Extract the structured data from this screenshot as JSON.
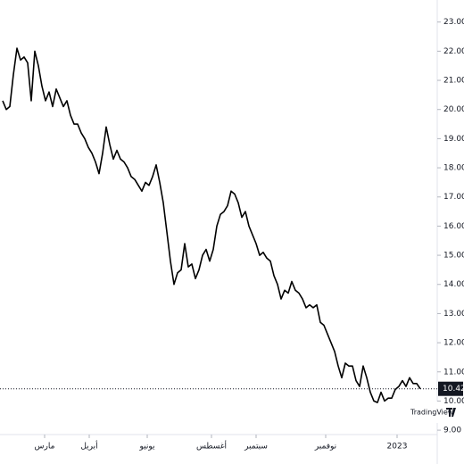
{
  "chart_data": {
    "type": "line",
    "color": "#000000",
    "values": [
      20.3,
      20.0,
      20.1,
      21.2,
      22.1,
      21.7,
      21.8,
      21.6,
      20.3,
      22.0,
      21.5,
      20.8,
      20.3,
      20.6,
      20.1,
      20.7,
      20.4,
      20.1,
      20.3,
      19.8,
      19.5,
      19.5,
      19.2,
      19.0,
      18.7,
      18.5,
      18.2,
      17.8,
      18.5,
      19.4,
      18.8,
      18.3,
      18.6,
      18.3,
      18.2,
      18.0,
      17.7,
      17.6,
      17.4,
      17.2,
      17.5,
      17.4,
      17.7,
      18.1,
      17.5,
      16.8,
      15.8,
      14.8,
      14.0,
      14.4,
      14.5,
      15.4,
      14.6,
      14.7,
      14.2,
      14.5,
      15.0,
      15.2,
      14.8,
      15.2,
      16.0,
      16.4,
      16.5,
      16.7,
      17.2,
      17.1,
      16.8,
      16.3,
      16.5,
      16.0,
      15.7,
      15.4,
      15.0,
      15.1,
      14.9,
      14.8,
      14.3,
      14.0,
      13.5,
      13.8,
      13.7,
      14.1,
      13.8,
      13.7,
      13.5,
      13.2,
      13.3,
      13.2,
      13.3,
      12.7,
      12.6,
      12.3,
      12.0,
      11.7,
      11.2,
      10.8,
      11.3,
      11.2,
      11.2,
      10.7,
      10.5,
      11.2,
      10.8,
      10.3,
      10.0,
      9.95,
      10.3,
      10.0,
      10.1,
      10.1,
      10.4,
      10.5,
      10.7,
      10.5,
      10.8,
      10.6,
      10.6,
      10.42
    ],
    "xlim": [
      0,
      117
    ],
    "xticks": [
      {
        "value": 11.75,
        "label": "مارس"
      },
      {
        "value": 24.25,
        "label": "أبريل"
      },
      {
        "value": 40.5,
        "label": "يونيو"
      },
      {
        "value": 58.5,
        "label": "أغسطس"
      },
      {
        "value": 71,
        "label": "سبتمبر"
      },
      {
        "value": 90.5,
        "label": "نوفمبر"
      },
      {
        "value": 110.5,
        "label": "2023"
      }
    ],
    "ylim": [
      8.85,
      23.45
    ],
    "yticks": [
      {
        "value": 9,
        "label": "9.00"
      },
      {
        "value": 10,
        "label": "10.00"
      },
      {
        "value": 11,
        "label": "11.00"
      },
      {
        "value": 12,
        "label": "12.00"
      },
      {
        "value": 13,
        "label": "13.00"
      },
      {
        "value": 14,
        "label": "14.00"
      },
      {
        "value": 15,
        "label": "15.00"
      },
      {
        "value": 16,
        "label": "16.00"
      },
      {
        "value": 17,
        "label": "17.00"
      },
      {
        "value": 18,
        "label": "18.00"
      },
      {
        "value": 19,
        "label": "19.00"
      },
      {
        "value": 20,
        "label": "20.00"
      },
      {
        "value": 21,
        "label": "21.00"
      },
      {
        "value": 22,
        "label": "22.00"
      },
      {
        "value": 23,
        "label": "23.00"
      }
    ],
    "last_price": 10.42,
    "watermark": "TradingView"
  }
}
